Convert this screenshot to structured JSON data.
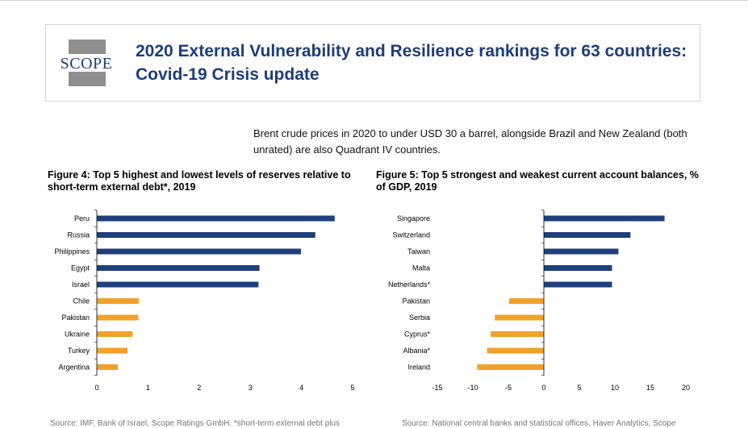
{
  "header": {
    "logo_text": "SCOPE",
    "title": "2020 External Vulnerability and Resilience rankings for 63 countries: Covid-19 Crisis update"
  },
  "intro_text": "Brent crude prices in 2020 to under USD 30 a barrel, alongside Brazil and New Zealand (both unrated) are also Quadrant IV countries.",
  "figures": {
    "fig4": {
      "title": "Figure 4: Top 5 highest and lowest levels of reserves relative to short-term external debt*, 2019",
      "source": "Source: IMF, Bank of Israel, Scope Ratings GmbH. *short-term external debt plus"
    },
    "fig5": {
      "title": "Figure 5: Top 5 strongest and weakest current account balances, % of GDP, 2019",
      "source": "Source: National central banks and statistical offices, Haver Analytics, Scope"
    }
  },
  "colors": {
    "brand": "#1d3d7a",
    "strong": "#1f3e7c",
    "weak": "#f0a12a"
  },
  "chart_data": [
    {
      "type": "bar",
      "orientation": "horizontal",
      "title": "Figure 4: Top 5 highest and lowest levels of reserves relative to short-term external debt*, 2019",
      "categories": [
        "Peru",
        "Russia",
        "Philippines",
        "Egypt",
        "Israel",
        "Chile",
        "Pakistan",
        "Ukraine",
        "Turkey",
        "Argentina"
      ],
      "values": [
        4.65,
        4.27,
        3.99,
        3.18,
        3.16,
        0.82,
        0.81,
        0.7,
        0.6,
        0.41
      ],
      "groups": [
        "top",
        "top",
        "top",
        "top",
        "top",
        "bottom",
        "bottom",
        "bottom",
        "bottom",
        "bottom"
      ],
      "xlim": [
        0,
        5
      ],
      "xticks": [
        "0",
        "1",
        "2",
        "3",
        "4",
        "5"
      ],
      "grid": false
    },
    {
      "type": "bar",
      "orientation": "horizontal",
      "title": "Figure 5: Top 5 strongest and weakest current account balances, % of GDP, 2019",
      "categories": [
        "Singapore",
        "Switzerland",
        "Taiwan",
        "Malta",
        "Netherlands*",
        "Pakistan",
        "Serbia",
        "Cyprus*",
        "Albania*",
        "Ireland"
      ],
      "values": [
        17.0,
        12.2,
        10.5,
        9.6,
        9.6,
        -4.9,
        -6.9,
        -7.5,
        -8.0,
        -9.4
      ],
      "groups": [
        "top",
        "top",
        "top",
        "top",
        "top",
        "bottom",
        "bottom",
        "bottom",
        "bottom",
        "bottom"
      ],
      "xlim": [
        -15,
        20
      ],
      "xticks": [
        "-15",
        "-10",
        "-5",
        "0",
        "5",
        "10",
        "15",
        "20"
      ],
      "grid": false
    }
  ]
}
